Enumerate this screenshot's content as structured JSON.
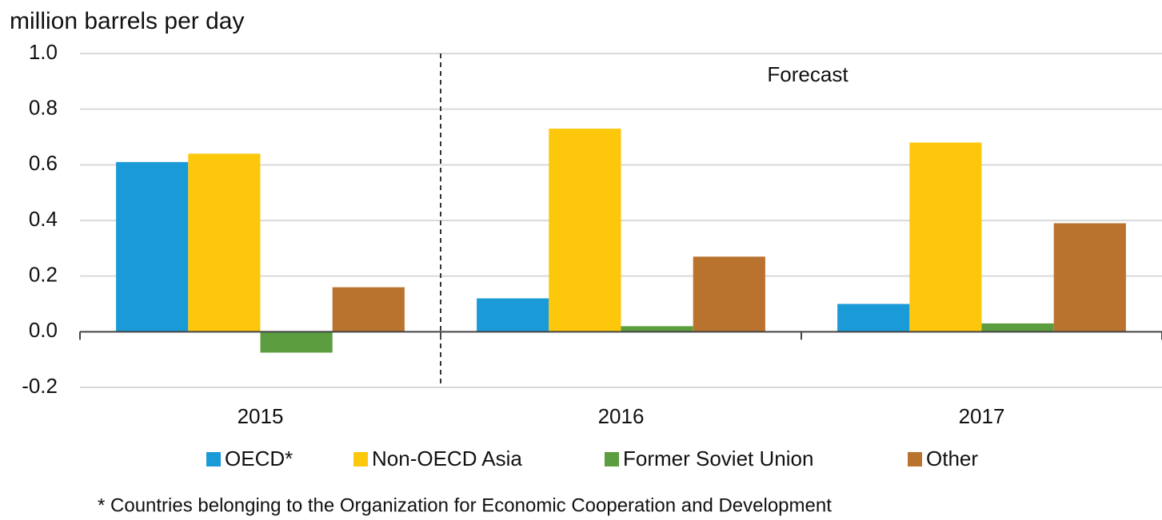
{
  "chart_data": {
    "type": "bar",
    "y_axis_label": "million barrels per day",
    "annotation": "Forecast",
    "footnote": "*  Countries belonging to the Organization for Economic Cooperation and Development",
    "categories": [
      "2015",
      "2016",
      "2017"
    ],
    "series": [
      {
        "name": "OECD*",
        "color": "#1a9ad6",
        "values": [
          0.61,
          0.12,
          0.1
        ]
      },
      {
        "name": "Non-OECD Asia",
        "color": "#fdc70c",
        "values": [
          0.64,
          0.73,
          0.68
        ]
      },
      {
        "name": "Former Soviet Union",
        "color": "#5c9e3f",
        "values": [
          -0.075,
          0.02,
          0.03
        ]
      },
      {
        "name": "Other",
        "color": "#b9732f",
        "values": [
          0.16,
          0.27,
          0.39
        ]
      }
    ],
    "ylim": [
      -0.2,
      1.0
    ],
    "yticks": [
      -0.2,
      {
        "value": 0,
        "label": "0.0"
      },
      0.2,
      0.4,
      0.6,
      0.8,
      {
        "value": 1,
        "label": "1.0"
      }
    ],
    "grid": true,
    "legend": "bottom"
  }
}
